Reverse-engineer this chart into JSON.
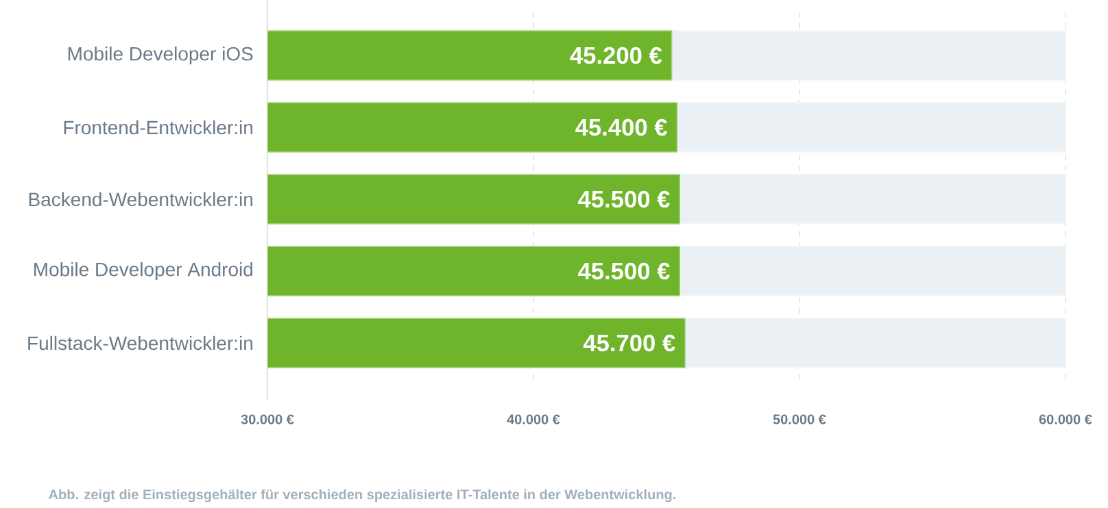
{
  "chart_data": {
    "type": "bar",
    "orientation": "horizontal",
    "categories": [
      "Mobile Developer iOS",
      "Frontend-Entwickler:in",
      "Backend-Webentwickler:in",
      "Mobile Developer Android",
      "Fullstack-Webentwickler:in"
    ],
    "series": [
      {
        "color": "#6fb52c",
        "values": [
          45200,
          45400,
          45500,
          45500,
          45700
        ],
        "value_labels": [
          "45.200 €",
          "45.400 €",
          "45.500 €",
          "45.500 €",
          "45.700 €"
        ]
      }
    ],
    "xlim": [
      30000,
      60000
    ],
    "xticks": [
      {
        "value": 30000,
        "label": "30.000 €"
      },
      {
        "value": 40000,
        "label": "40.000 €"
      },
      {
        "value": 50000,
        "label": "50.000 €"
      },
      {
        "value": 60000,
        "label": "60.000 €"
      }
    ],
    "grid": "x",
    "annotations": [
      "Abb. zeigt die Einstiegsgehälter für verschieden spezialisierte  IT-Talente in der Webentwicklung."
    ]
  }
}
